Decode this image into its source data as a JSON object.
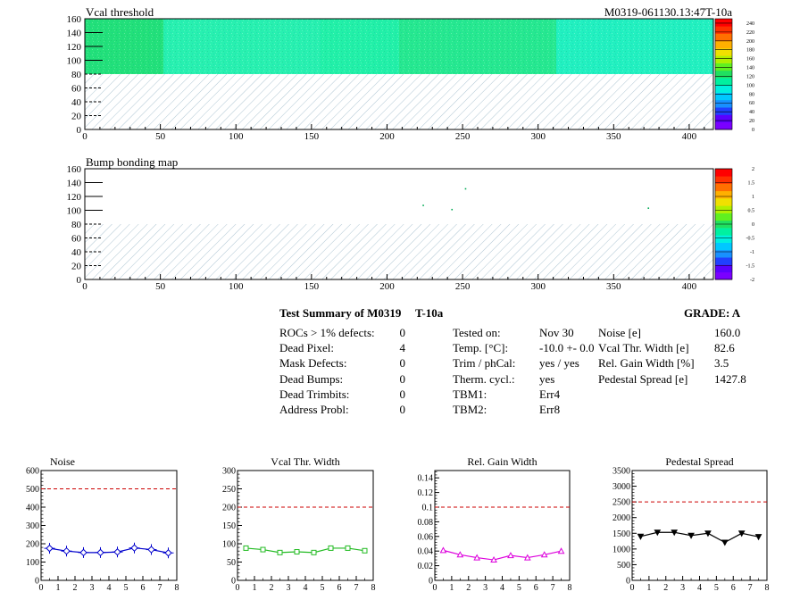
{
  "header": {
    "module_id": "M0319-061130.13:47T-10a"
  },
  "maps": [
    {
      "title": "Vcal threshold",
      "xlim": [
        0,
        416
      ],
      "ylim": [
        0,
        160
      ],
      "x_ticks": [
        "0",
        "50",
        "100",
        "150",
        "200",
        "250",
        "300",
        "350",
        "400"
      ],
      "y_ticks": [
        "0",
        "20",
        "40",
        "60",
        "80",
        "100",
        "120",
        "140",
        "160"
      ],
      "colorbar_ticks": [
        "0",
        "20",
        "40",
        "60",
        "80",
        "100",
        "120",
        "140",
        "160",
        "180",
        "200",
        "220",
        "240"
      ],
      "colorbar_range": [
        0,
        250
      ],
      "data_rows": [
        80,
        160
      ],
      "roc_bands": [
        {
          "x": [
            0,
            52
          ],
          "color": "#22e07a"
        },
        {
          "x": [
            52,
            156
          ],
          "color": "#28f0b0"
        },
        {
          "x": [
            156,
            208
          ],
          "color": "#22f0a8"
        },
        {
          "x": [
            208,
            312
          ],
          "color": "#26e890"
        },
        {
          "x": [
            312,
            416
          ],
          "color": "#22f0c0"
        }
      ],
      "hatched_region": [
        0,
        80
      ]
    },
    {
      "title": "Bump bonding map",
      "xlim": [
        0,
        416
      ],
      "ylim": [
        0,
        160
      ],
      "x_ticks": [
        "0",
        "50",
        "100",
        "150",
        "200",
        "250",
        "300",
        "350",
        "400"
      ],
      "y_ticks": [
        "0",
        "20",
        "40",
        "60",
        "80",
        "100",
        "120",
        "140",
        "160"
      ],
      "colorbar_ticks": [
        "-2",
        "-1.5",
        "-1",
        "-0.5",
        "0",
        "0.5",
        "1",
        "1.5",
        "2"
      ],
      "colorbar_range": [
        -2,
        2
      ],
      "hatched_region": [
        0,
        80
      ],
      "dots": [
        {
          "x": 252,
          "y": 131,
          "color": "#00aa55"
        },
        {
          "x": 224,
          "y": 107,
          "color": "#00aa55"
        },
        {
          "x": 243,
          "y": 101,
          "color": "#00aa55"
        },
        {
          "x": 373,
          "y": 103,
          "color": "#00aa55"
        }
      ]
    }
  ],
  "summary": {
    "title": "Test Summary of M0319",
    "temp_tag": "T-10a",
    "grade": "GRADE:  A",
    "left_rows": [
      {
        "label": "ROCs > 1% defects:",
        "value": "0"
      },
      {
        "label": "Dead Pixel:",
        "value": "4"
      },
      {
        "label": "Mask Defects:",
        "value": "0"
      },
      {
        "label": "Dead Bumps:",
        "value": "0"
      },
      {
        "label": "Dead Trimbits:",
        "value": "0"
      },
      {
        "label": "Address Probl:",
        "value": "0"
      }
    ],
    "mid_rows": [
      {
        "label": "Tested on:",
        "value": "Nov 30"
      },
      {
        "label": "Temp. [°C]:",
        "value": "-10.0 +- 0.0"
      },
      {
        "label": "Trim / phCal:",
        "value": "yes / yes"
      },
      {
        "label": "Therm. cycl.:",
        "value": "yes"
      },
      {
        "label": "TBM1:",
        "value": "Err4"
      },
      {
        "label": "TBM2:",
        "value": "Err8"
      }
    ],
    "right_rows": [
      {
        "label": "Noise [e]",
        "value": "160.0"
      },
      {
        "label": "Vcal Thr. Width [e]",
        "value": "82.6"
      },
      {
        "label": "Rel. Gain Width [%]",
        "value": "3.5"
      },
      {
        "label": "Pedestal Spread [e]",
        "value": "1427.8"
      }
    ]
  },
  "chart_data": [
    {
      "type": "line",
      "title": "Noise",
      "x": [
        0.5,
        1.5,
        2.5,
        3.5,
        4.5,
        5.5,
        6.5,
        7.5
      ],
      "values": [
        175,
        160,
        152,
        152,
        155,
        177,
        168,
        150
      ],
      "xlim": [
        0,
        8
      ],
      "ylim": [
        0,
        600
      ],
      "x_ticks": [
        "0",
        "1",
        "2",
        "3",
        "4",
        "5",
        "6",
        "7",
        "8"
      ],
      "y_ticks": [
        "0",
        "100",
        "200",
        "300",
        "400",
        "500",
        "600"
      ],
      "threshold": 500,
      "color": "#0000cc",
      "marker": "diamond-errorbar"
    },
    {
      "type": "line",
      "title": "Vcal Thr. Width",
      "x": [
        0.5,
        1.5,
        2.5,
        3.5,
        4.5,
        5.5,
        6.5,
        7.5
      ],
      "values": [
        88,
        84,
        76,
        78,
        76,
        88,
        88,
        81
      ],
      "xlim": [
        0,
        8
      ],
      "ylim": [
        0,
        300
      ],
      "x_ticks": [
        "0",
        "1",
        "2",
        "3",
        "4",
        "5",
        "6",
        "7",
        "8"
      ],
      "y_ticks": [
        "0",
        "50",
        "100",
        "150",
        "200",
        "250",
        "300"
      ],
      "threshold": 200,
      "color": "#22bb22",
      "marker": "square"
    },
    {
      "type": "line",
      "title": "Rel. Gain Width",
      "x": [
        0.5,
        1.5,
        2.5,
        3.5,
        4.5,
        5.5,
        6.5,
        7.5
      ],
      "values": [
        0.041,
        0.035,
        0.031,
        0.028,
        0.034,
        0.031,
        0.035,
        0.04
      ],
      "xlim": [
        0,
        8
      ],
      "ylim": [
        0,
        0.15
      ],
      "x_ticks": [
        "0",
        "1",
        "2",
        "3",
        "4",
        "5",
        "6",
        "7",
        "8"
      ],
      "y_ticks": [
        "0",
        "0.02",
        "0.04",
        "0.06",
        "0.08",
        "0.1",
        "0.12",
        "0.14"
      ],
      "threshold": 0.1,
      "color": "#dd00dd",
      "marker": "triangle"
    },
    {
      "type": "line",
      "title": "Pedestal Spread",
      "x": [
        0.5,
        1.5,
        2.5,
        3.5,
        4.5,
        5.5,
        6.5,
        7.5
      ],
      "values": [
        1400,
        1530,
        1530,
        1430,
        1500,
        1210,
        1500,
        1390
      ],
      "xlim": [
        0,
        8
      ],
      "ylim": [
        0,
        3500
      ],
      "x_ticks": [
        "0",
        "1",
        "2",
        "3",
        "4",
        "5",
        "6",
        "7",
        "8"
      ],
      "y_ticks": [
        "0",
        "500",
        "1000",
        "1500",
        "2000",
        "2500",
        "3000",
        "3500"
      ],
      "threshold": 2500,
      "color": "#000000",
      "marker": "triangle-down"
    }
  ]
}
